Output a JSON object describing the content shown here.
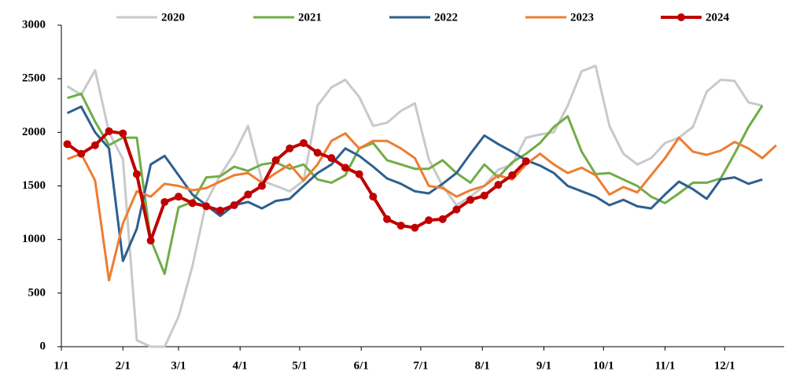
{
  "chart_data": {
    "type": "line",
    "xlim": [
      0,
      364
    ],
    "xticks": [
      {
        "value": 0,
        "label": "1/1"
      },
      {
        "value": 31,
        "label": "2/1"
      },
      {
        "value": 59,
        "label": "3/1"
      },
      {
        "value": 90,
        "label": "4/1"
      },
      {
        "value": 120,
        "label": "5/1"
      },
      {
        "value": 151,
        "label": "6/1"
      },
      {
        "value": 181,
        "label": "7/1"
      },
      {
        "value": 212,
        "label": "8/1"
      },
      {
        "value": 243,
        "label": "9/1"
      },
      {
        "value": 273,
        "label": "10/1"
      },
      {
        "value": 304,
        "label": "11/1"
      },
      {
        "value": 334,
        "label": "12/1"
      }
    ],
    "ylim": [
      0,
      3000
    ],
    "yticks": [
      0,
      500,
      1000,
      1500,
      2000,
      2500,
      3000
    ],
    "legend": "top",
    "x": [
      3,
      10,
      17,
      24,
      31,
      38,
      45,
      52,
      59,
      66,
      73,
      80,
      87,
      94,
      101,
      108,
      115,
      122,
      129,
      136,
      143,
      150,
      157,
      164,
      171,
      178,
      185,
      192,
      199,
      206,
      213,
      220,
      227,
      234,
      241,
      248,
      255,
      262,
      269,
      276,
      283,
      290,
      297,
      304,
      311,
      318,
      325,
      332,
      339,
      346,
      353,
      360
    ],
    "series": [
      {
        "name": "2020",
        "color": "#c9c9c9",
        "values": [
          2430,
          2350,
          2580,
          2000,
          1750,
          60,
          0,
          0,
          280,
          750,
          1350,
          1600,
          1800,
          2060,
          1550,
          1500,
          1450,
          1550,
          2250,
          2420,
          2490,
          2330,
          2060,
          2090,
          2200,
          2270,
          1750,
          1500,
          1320,
          1400,
          1500,
          1650,
          1700,
          1950,
          1980,
          2000,
          2250,
          2570,
          2620,
          2060,
          1800,
          1700,
          1760,
          1900,
          1950,
          2050,
          2380,
          2490,
          2480,
          2280,
          2250,
          null
        ]
      },
      {
        "name": "2021",
        "color": "#70ad47",
        "values": [
          2320,
          2360,
          2100,
          1880,
          1950,
          1950,
          1000,
          680,
          1300,
          1350,
          1580,
          1590,
          1680,
          1640,
          1700,
          1720,
          1660,
          1700,
          1560,
          1530,
          1600,
          1850,
          1900,
          1740,
          1700,
          1660,
          1660,
          1740,
          1620,
          1530,
          1700,
          1580,
          1720,
          1800,
          1900,
          2050,
          2150,
          1820,
          1610,
          1620,
          1560,
          1500,
          1400,
          1340,
          1430,
          1530,
          1530,
          1570,
          1800,
          2050,
          2250,
          null
        ]
      },
      {
        "name": "2022",
        "color": "#2e5f8f",
        "values": [
          2180,
          2240,
          2000,
          1850,
          800,
          1100,
          1700,
          1780,
          1600,
          1420,
          1320,
          1220,
          1320,
          1350,
          1290,
          1360,
          1380,
          1500,
          1620,
          1700,
          1850,
          1780,
          1680,
          1570,
          1520,
          1450,
          1430,
          1520,
          1620,
          1800,
          1970,
          1890,
          1820,
          1740,
          1690,
          1620,
          1500,
          1450,
          1400,
          1320,
          1370,
          1310,
          1290,
          1420,
          1540,
          1470,
          1380,
          1560,
          1580,
          1520,
          1560,
          null
        ]
      },
      {
        "name": "2023",
        "color": "#ed7d31",
        "values": [
          1750,
          1800,
          1550,
          620,
          1150,
          1450,
          1400,
          1520,
          1500,
          1460,
          1480,
          1540,
          1600,
          1620,
          1530,
          1620,
          1700,
          1550,
          1700,
          1920,
          1990,
          1850,
          1920,
          1920,
          1850,
          1760,
          1500,
          1480,
          1400,
          1460,
          1500,
          1600,
          1560,
          1700,
          1800,
          1700,
          1620,
          1670,
          1600,
          1420,
          1490,
          1440,
          1600,
          1760,
          1950,
          1820,
          1790,
          1830,
          1910,
          1850,
          1760,
          1880
        ]
      },
      {
        "name": "2024",
        "color": "#c00000",
        "markers": true,
        "values": [
          1890,
          1800,
          1880,
          2010,
          1990,
          1610,
          990,
          1350,
          1400,
          1340,
          1310,
          1270,
          1320,
          1420,
          1500,
          1740,
          1850,
          1900,
          1810,
          1760,
          1670,
          1610,
          1400,
          1190,
          1130,
          1110,
          1180,
          1190,
          1280,
          1370,
          1410,
          1510,
          1600,
          1730,
          null,
          null,
          null,
          null,
          null,
          null,
          null,
          null,
          null,
          null,
          null,
          null,
          null,
          null,
          null,
          null,
          null,
          null
        ]
      }
    ]
  }
}
